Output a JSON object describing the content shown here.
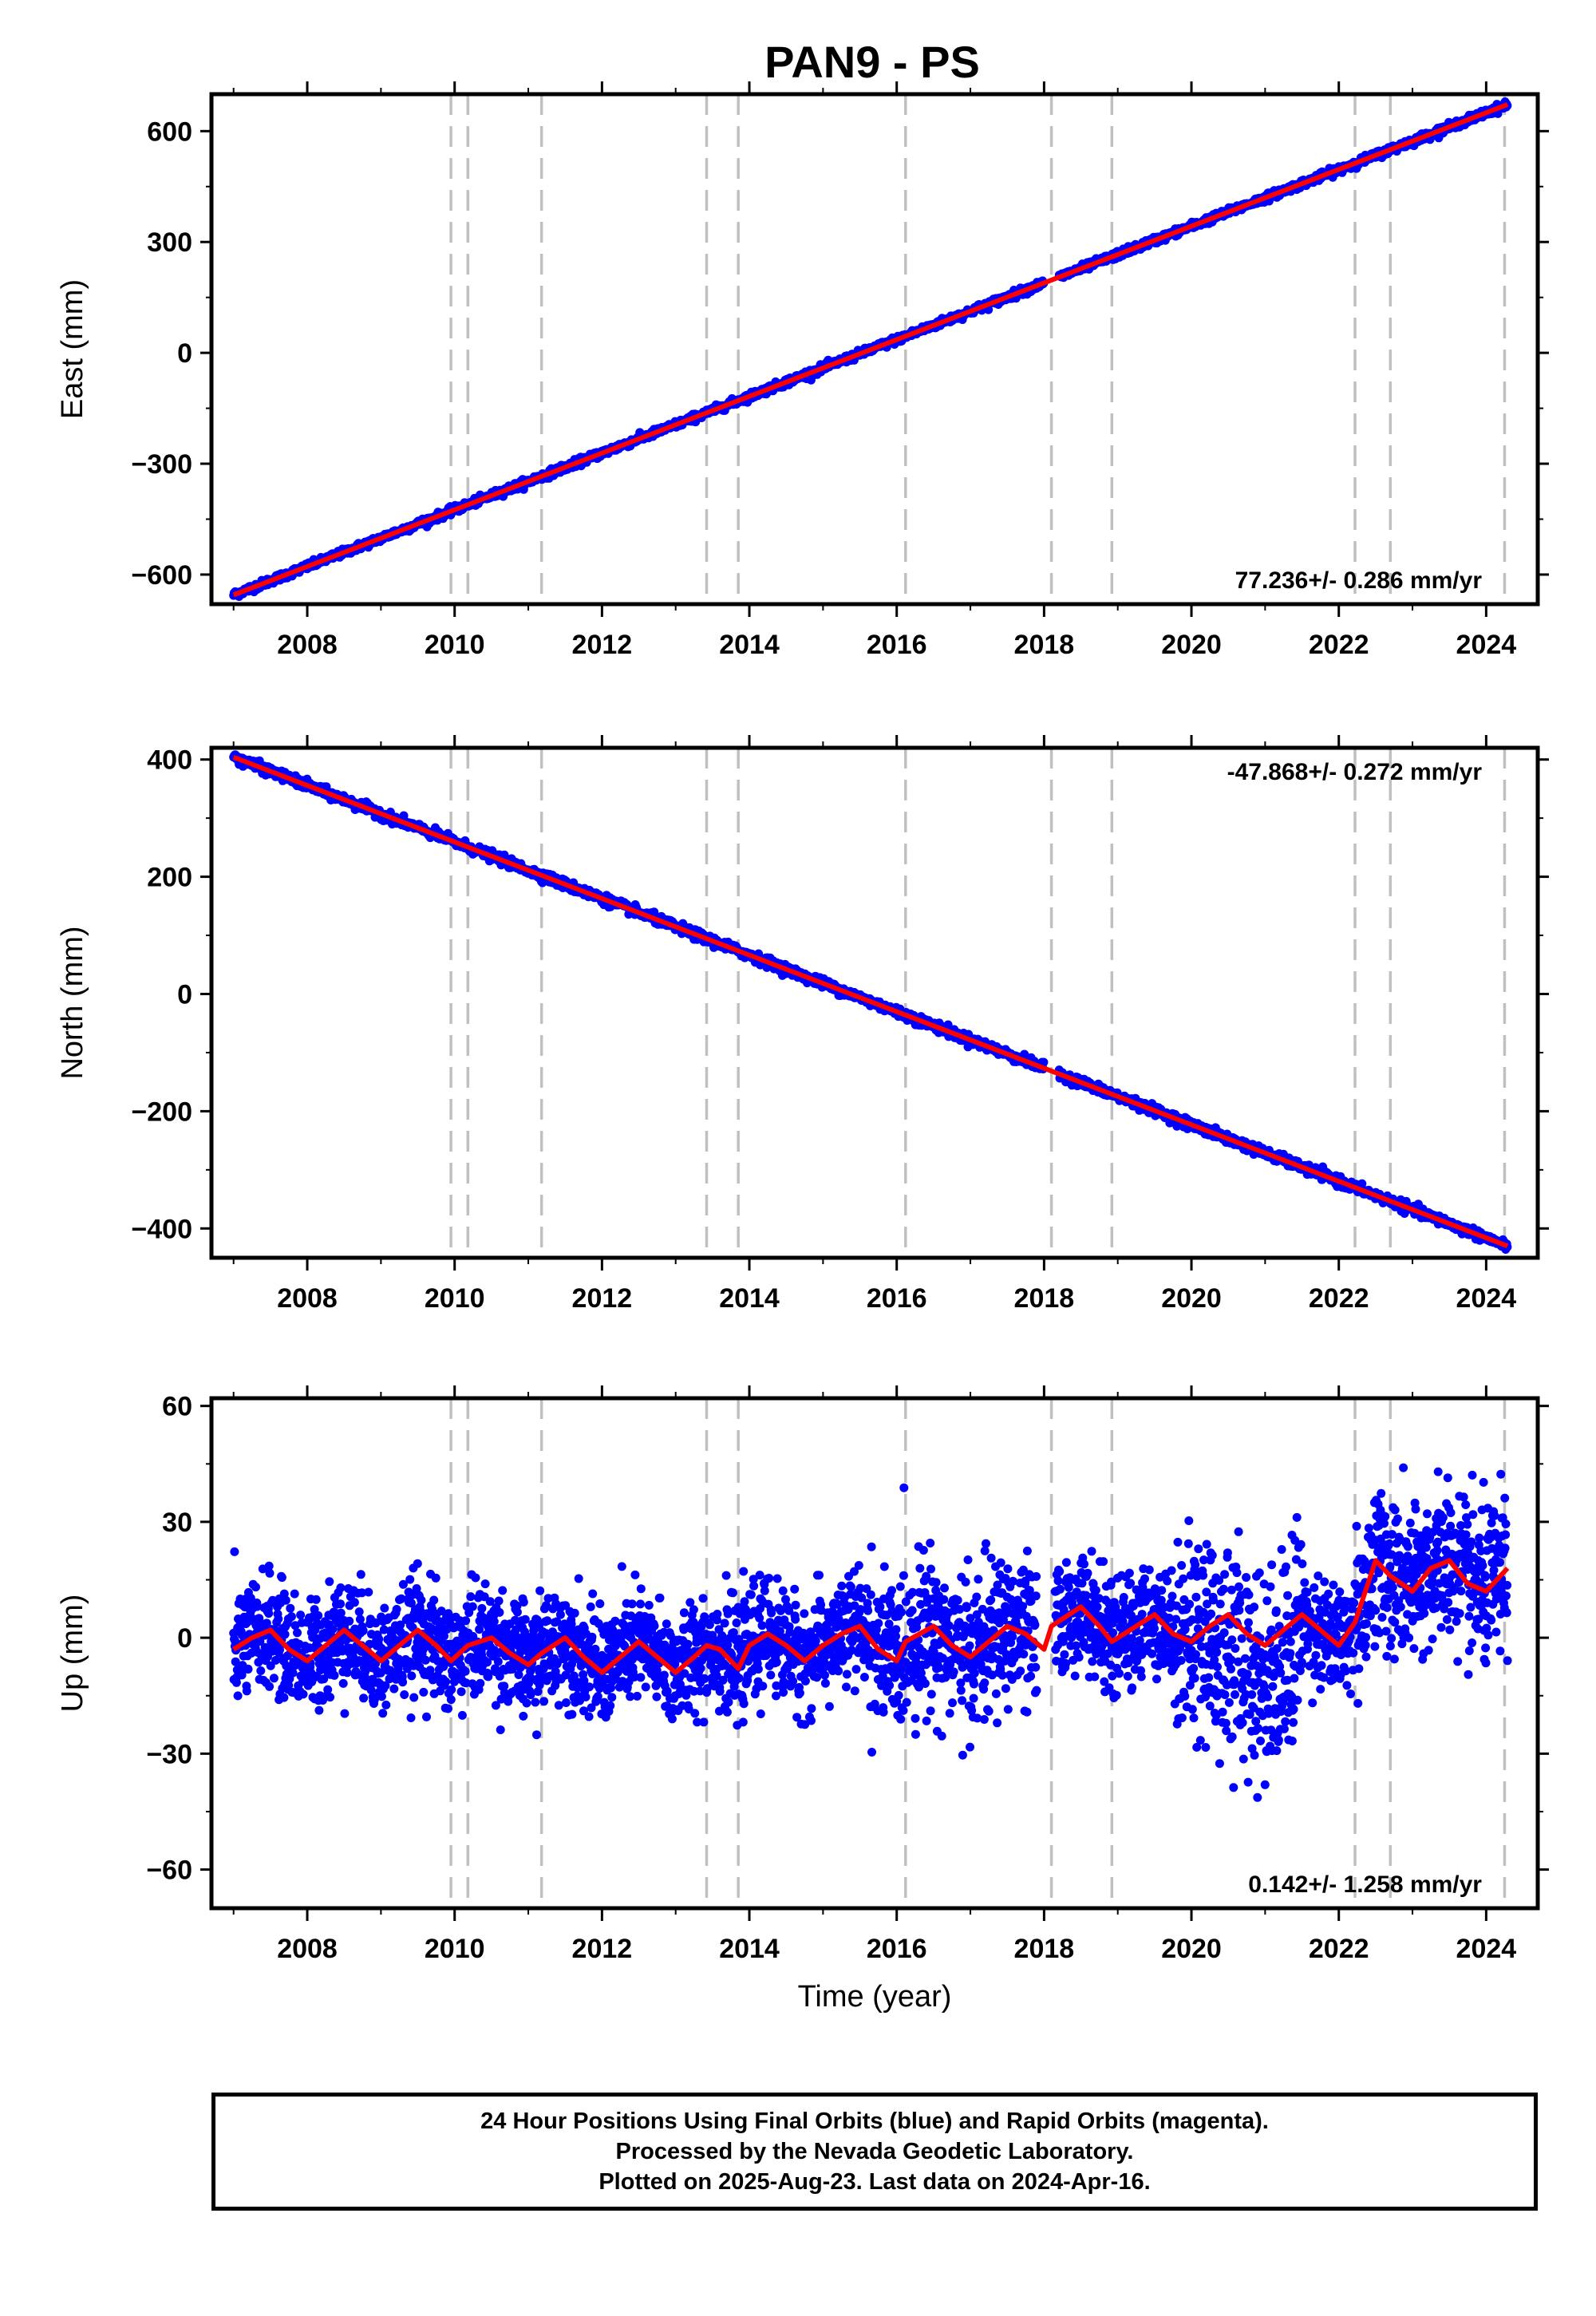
{
  "title": "PAN9 - PS",
  "colors": {
    "final_orbits": "#0000ff",
    "model": "#ff0000",
    "event_lines": "#c0c0c0",
    "frame": "#000000"
  },
  "chart_data": [
    {
      "type": "scatter",
      "panel": "east",
      "ylabel": "East (mm)",
      "xlabel": "",
      "xlim": [
        2006.7,
        2024.7
      ],
      "ylim": [
        -680,
        700
      ],
      "yticks": [
        -600,
        -300,
        0,
        300,
        600
      ],
      "xticks": [
        2008,
        2010,
        2012,
        2014,
        2016,
        2018,
        2020,
        2022,
        2024
      ],
      "grid": false,
      "event_lines_x": [
        2009.95,
        2010.18,
        2011.18,
        2013.42,
        2013.85,
        2016.12,
        2018.1,
        2018.92,
        2022.22,
        2022.7,
        2024.25
      ],
      "rate_label": "77.236+/- 0.286 mm/yr",
      "rate_position": "bottom-right",
      "series": [
        {
          "values_kind": "daily-positions",
          "color": "#0000ff",
          "start": 2007.0,
          "end": 2024.29,
          "gap": [
            2018.0,
            2018.2
          ],
          "y_start": -655,
          "y_end": 672,
          "scatter_sd": 5
        },
        {
          "values_kind": "model",
          "color": "#ff0000",
          "x": [
            2007.0,
            2024.29
          ],
          "y": [
            -655,
            672
          ]
        }
      ]
    },
    {
      "type": "scatter",
      "panel": "north",
      "ylabel": "North (mm)",
      "xlabel": "",
      "xlim": [
        2006.7,
        2024.7
      ],
      "ylim": [
        -450,
        420
      ],
      "yticks": [
        -400,
        -200,
        0,
        200,
        400
      ],
      "xticks": [
        2008,
        2010,
        2012,
        2014,
        2016,
        2018,
        2020,
        2022,
        2024
      ],
      "grid": false,
      "event_lines_x": [
        2009.95,
        2010.18,
        2011.18,
        2013.42,
        2013.85,
        2016.12,
        2018.1,
        2018.92,
        2022.22,
        2022.7,
        2024.25
      ],
      "rate_label": "-47.868+/- 0.272 mm/yr",
      "rate_position": "top-right",
      "series": [
        {
          "values_kind": "daily-positions",
          "color": "#0000ff",
          "start": 2007.0,
          "end": 2024.29,
          "gap": [
            2018.0,
            2018.2
          ],
          "y_start": 404,
          "y_end": -430,
          "scatter_sd": 4
        },
        {
          "values_kind": "model",
          "color": "#ff0000",
          "x": [
            2007.0,
            2024.29
          ],
          "y": [
            404,
            -430
          ]
        }
      ]
    },
    {
      "type": "scatter",
      "panel": "up",
      "ylabel": "Up (mm)",
      "xlabel": "Time (year)",
      "xlim": [
        2006.7,
        2024.7
      ],
      "ylim": [
        -70,
        62
      ],
      "yticks": [
        -60,
        -30,
        0,
        30,
        60
      ],
      "xticks": [
        2008,
        2010,
        2012,
        2014,
        2016,
        2018,
        2020,
        2022,
        2024
      ],
      "grid": false,
      "event_lines_x": [
        2009.95,
        2010.18,
        2011.18,
        2013.42,
        2013.85,
        2016.12,
        2018.1,
        2018.92,
        2022.22,
        2022.7,
        2024.25
      ],
      "rate_label": "0.142+/- 1.258 mm/yr",
      "rate_position": "bottom-right",
      "series": [
        {
          "values_kind": "daily-positions",
          "color": "#0000ff",
          "start": 2007.0,
          "end": 2024.29,
          "gap": [
            2017.9,
            2018.15
          ],
          "scatter_sd": 7
        },
        {
          "values_kind": "model",
          "color": "#ff0000",
          "x": [
            2007.0,
            2007.25,
            2007.5,
            2007.75,
            2008.0,
            2008.25,
            2008.5,
            2008.75,
            2009.0,
            2009.25,
            2009.5,
            2009.75,
            2009.95,
            2010.18,
            2010.5,
            2010.75,
            2011.0,
            2011.18,
            2011.5,
            2011.75,
            2012.0,
            2012.25,
            2012.5,
            2012.75,
            2013.0,
            2013.25,
            2013.42,
            2013.6,
            2013.85,
            2014.0,
            2014.25,
            2014.5,
            2014.75,
            2015.0,
            2015.25,
            2015.5,
            2015.75,
            2016.0,
            2016.12,
            2016.5,
            2016.75,
            2017.0,
            2017.25,
            2017.5,
            2017.75,
            2018.0,
            2018.1,
            2018.5,
            2018.75,
            2018.92,
            2019.25,
            2019.5,
            2019.75,
            2020.0,
            2020.25,
            2020.5,
            2020.75,
            2021.0,
            2021.25,
            2021.5,
            2021.75,
            2022.0,
            2022.22,
            2022.5,
            2022.7,
            2023.0,
            2023.25,
            2023.5,
            2023.75,
            2024.0,
            2024.29
          ],
          "y": [
            -3,
            0,
            2,
            -3,
            -6,
            -2,
            2,
            -2,
            -6,
            -2,
            2,
            -2,
            -6,
            -2,
            0,
            -4,
            -7,
            -4,
            0,
            -5,
            -9,
            -5,
            -1,
            -5,
            -9,
            -5,
            -2,
            -3,
            -8,
            -2,
            1,
            -2,
            -6,
            -2,
            1,
            3,
            -3,
            -6,
            -1,
            3,
            -2,
            -5,
            -1,
            3,
            1,
            -3,
            3,
            8,
            3,
            -1,
            3,
            6,
            1,
            -1,
            3,
            6,
            1,
            -2,
            2,
            6,
            2,
            -2,
            4,
            20,
            16,
            12,
            18,
            20,
            14,
            12,
            18
          ]
        }
      ]
    }
  ],
  "footer": {
    "line1": "24 Hour Positions Using Final Orbits (blue) and Rapid Orbits (magenta).",
    "line2": "Processed by the Nevada Geodetic Laboratory.",
    "line3": "Plotted on 2025-Aug-23. Last data on 2024-Apr-16."
  }
}
